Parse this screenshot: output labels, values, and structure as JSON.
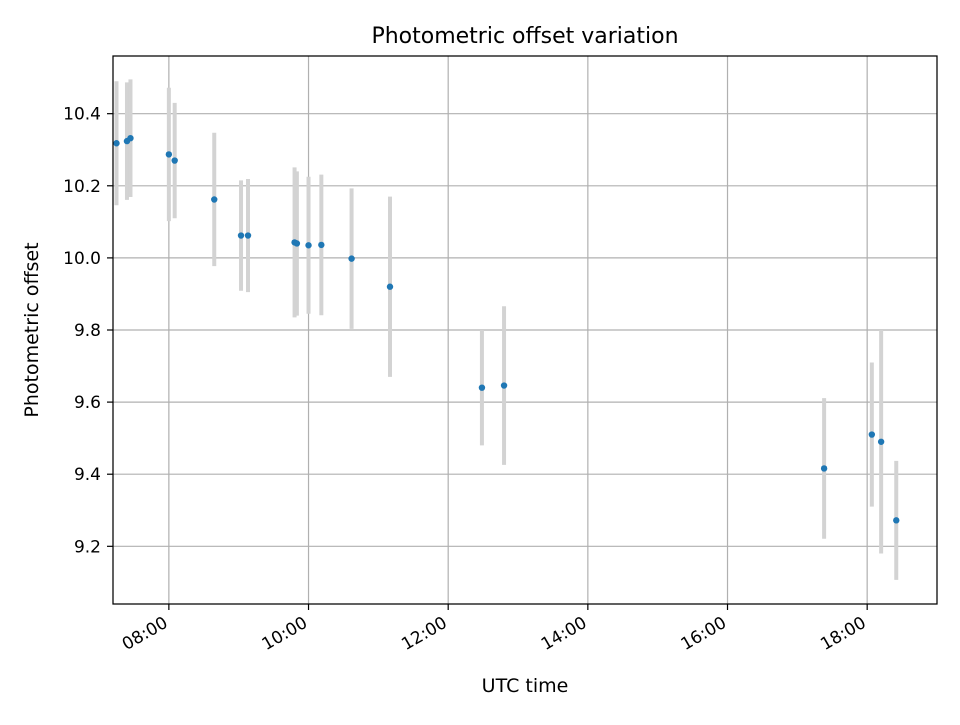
{
  "chart_data": {
    "type": "scatter",
    "title": "Photometric offset variation",
    "xlabel": "UTC time",
    "ylabel": "Photometric offset",
    "xlim": [
      "07:12",
      "19:00"
    ],
    "ylim": [
      9.04,
      10.56
    ],
    "x_ticks": [
      "08:00",
      "10:00",
      "12:00",
      "14:00",
      "16:00",
      "18:00"
    ],
    "y_ticks": [
      "9.2",
      "9.4",
      "9.6",
      "9.8",
      "10.0",
      "10.2",
      "10.4"
    ],
    "grid": true,
    "colors": {
      "points": "#1f77b4",
      "errorbars": "#d3d3d3",
      "grid": "#b0b0b0"
    },
    "series": [
      {
        "points": [
          {
            "x": "07:15",
            "y": 10.318,
            "yerr": 0.172
          },
          {
            "x": "07:24",
            "y": 10.324,
            "yerr": 0.163
          },
          {
            "x": "07:27",
            "y": 10.332,
            "yerr": 0.163
          },
          {
            "x": "08:00",
            "y": 10.287,
            "yerr": 0.185
          },
          {
            "x": "08:05",
            "y": 10.27,
            "yerr": 0.16
          },
          {
            "x": "08:39",
            "y": 10.162,
            "yerr": 0.185
          },
          {
            "x": "09:02",
            "y": 10.062,
            "yerr": 0.153
          },
          {
            "x": "09:08",
            "y": 10.062,
            "yerr": 0.157
          },
          {
            "x": "09:48",
            "y": 10.043,
            "yerr": 0.208
          },
          {
            "x": "09:50",
            "y": 10.04,
            "yerr": 0.2
          },
          {
            "x": "10:00",
            "y": 10.035,
            "yerr": 0.19
          },
          {
            "x": "10:11",
            "y": 10.036,
            "yerr": 0.195
          },
          {
            "x": "10:37",
            "y": 9.998,
            "yerr": 0.195
          },
          {
            "x": "11:10",
            "y": 9.92,
            "yerr": 0.25
          },
          {
            "x": "12:29",
            "y": 9.64,
            "yerr": 0.16
          },
          {
            "x": "12:48",
            "y": 9.646,
            "yerr": 0.22
          },
          {
            "x": "17:23",
            "y": 9.416,
            "yerr": 0.195
          },
          {
            "x": "18:04",
            "y": 9.51,
            "yerr": 0.2
          },
          {
            "x": "18:12",
            "y": 9.49,
            "yerr": 0.31
          },
          {
            "x": "18:25",
            "y": 9.272,
            "yerr": 0.165
          }
        ]
      }
    ]
  }
}
